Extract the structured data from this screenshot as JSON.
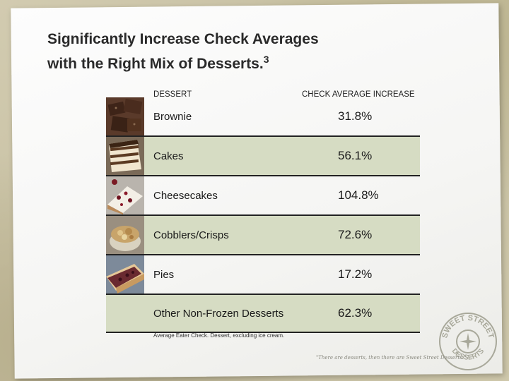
{
  "slide": {
    "title_line1": "Significantly Increase Check Averages",
    "title_line2": "with the Right Mix of Desserts.",
    "title_sup": "3"
  },
  "table": {
    "headers": {
      "dessert": "DESSERT",
      "increase": "CHECK AVERAGE INCREASE"
    },
    "rows": [
      {
        "dessert": "Brownie",
        "increase": "31.8%",
        "image": "brownie-photo"
      },
      {
        "dessert": "Cakes",
        "increase": "56.1%",
        "image": "cake-photo"
      },
      {
        "dessert": "Cheesecakes",
        "increase": "104.8%",
        "image": "cheesecake-photo"
      },
      {
        "dessert": "Cobblers/Crisps",
        "increase": "72.6%",
        "image": "cobbler-photo"
      },
      {
        "dessert": "Pies",
        "increase": "17.2%",
        "image": "pie-photo"
      },
      {
        "dessert": "Other Non-Frozen Desserts",
        "increase": "62.3%"
      }
    ]
  },
  "footnote": "Average Eater Check. Dessert, excluding ice cream.",
  "branding": {
    "logo_text_top": "SWEET STREET",
    "logo_text_bottom": "DESSERTS",
    "tagline": "\"There are desserts, then there are Sweet Street Desserts.\""
  },
  "colors": {
    "row_shade": "#d6dcc3",
    "rule": "#222222"
  }
}
